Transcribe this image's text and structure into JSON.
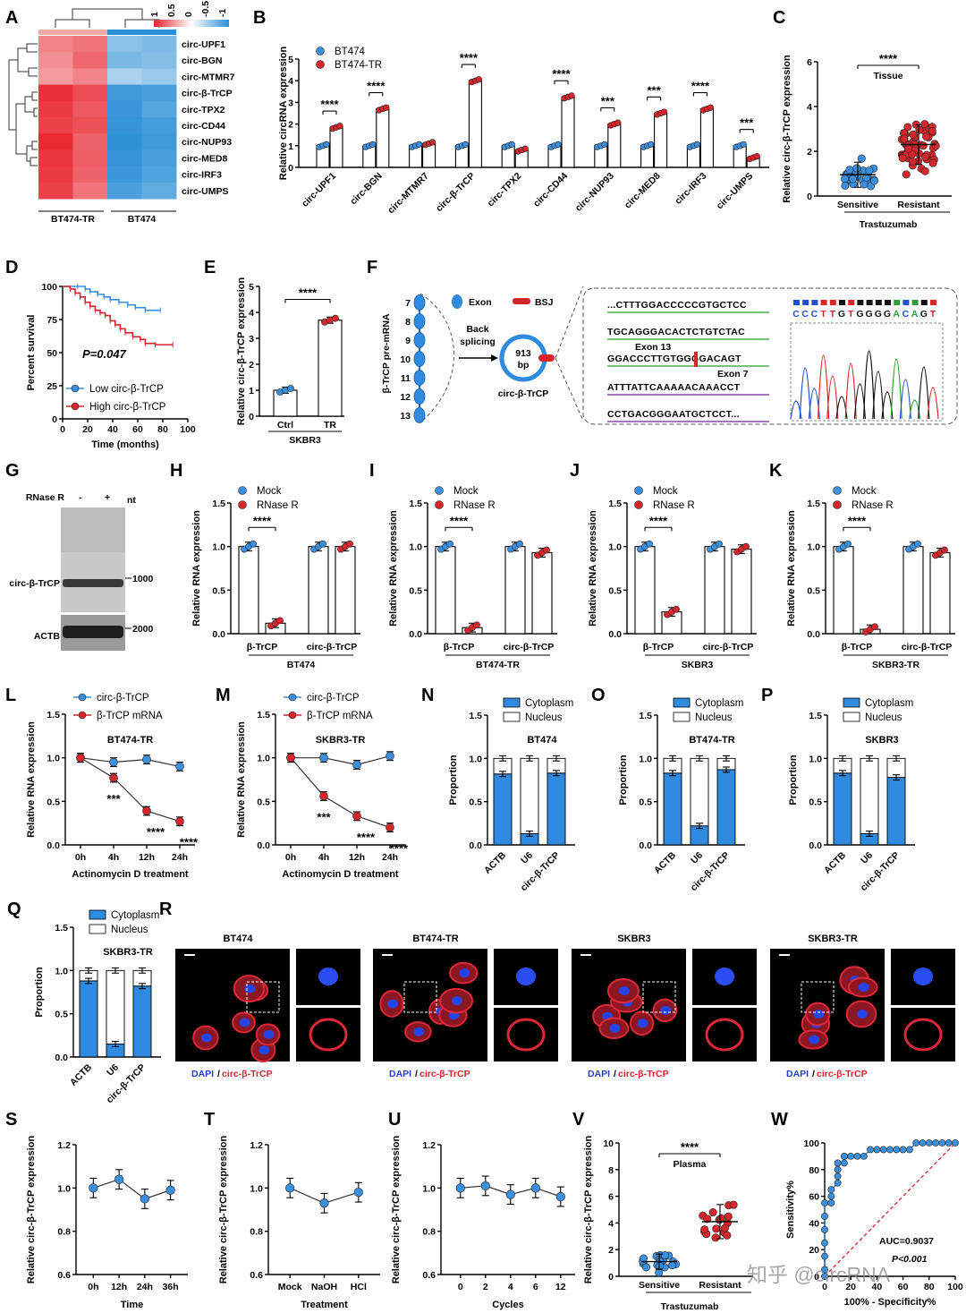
{
  "figure": {
    "panel_labels": [
      "A",
      "B",
      "C",
      "D",
      "E",
      "F",
      "G",
      "H",
      "I",
      "J",
      "K",
      "L",
      "M",
      "N",
      "O",
      "P",
      "Q",
      "R",
      "S",
      "T",
      "U",
      "V",
      "W"
    ],
    "watermark": "知乎 @circRNA"
  },
  "chart_data": [
    {
      "panel": "A",
      "type": "heatmap",
      "rows": [
        "circ-UPF1",
        "circ-BGN",
        "circ-MTMR7",
        "circ-β-TrCP",
        "circ-TPX2",
        "circ-CD44",
        "circ-NUP93",
        "circ-MED8",
        "circ-IRF3",
        "circ-UMPS"
      ],
      "groups": [
        "BT474-TR",
        "BT474"
      ],
      "scale_ticks": [
        "1",
        "0.5",
        "0",
        "-0.5",
        "-1"
      ],
      "colors": {
        "high": "#e8202a",
        "mid": "#ffffff",
        "low": "#2b8fd6"
      },
      "values": [
        [
          0.55,
          0.62,
          -0.55,
          -0.6
        ],
        [
          0.5,
          0.68,
          -0.62,
          -0.58
        ],
        [
          0.45,
          0.55,
          -0.4,
          -0.48
        ],
        [
          0.92,
          0.8,
          -0.9,
          -0.85
        ],
        [
          0.88,
          0.75,
          -0.92,
          -0.8
        ],
        [
          0.85,
          0.78,
          -0.95,
          -0.88
        ],
        [
          0.95,
          0.7,
          -0.98,
          -0.9
        ],
        [
          0.9,
          0.72,
          -0.95,
          -0.85
        ],
        [
          0.88,
          0.7,
          -0.92,
          -0.82
        ],
        [
          0.85,
          0.62,
          -0.85,
          -0.75
        ]
      ]
    },
    {
      "panel": "B",
      "type": "bar",
      "ylabel": "Relative circRNA expression",
      "ylim": [
        0,
        5
      ],
      "yticks": [
        "0",
        "1",
        "2",
        "3",
        "4",
        "5"
      ],
      "categories": [
        "circ-UPF1",
        "circ-BGN",
        "circ-MTMR7",
        "circ-β-TrCP",
        "circ-TPX2",
        "circ-CD44",
        "circ-NUP93",
        "circ-MED8",
        "circ-IRF3",
        "circ-UMPS"
      ],
      "series": [
        {
          "name": "BT474",
          "color": "#3a8fde",
          "values": [
            1,
            1,
            1,
            1,
            1,
            1,
            1,
            1,
            1,
            1
          ]
        },
        {
          "name": "BT474-TR",
          "color": "#d7262b",
          "values": [
            1.85,
            2.7,
            1.1,
            4.0,
            0.8,
            3.25,
            2.0,
            2.5,
            2.7,
            0.45
          ]
        }
      ],
      "significance": [
        "****",
        "****",
        "",
        "****",
        "",
        "****",
        "***",
        "***",
        "****",
        "***"
      ]
    },
    {
      "panel": "C",
      "type": "scatter",
      "ylabel": "Relative circ-β-TrCP expression",
      "ylim": [
        0,
        6
      ],
      "yticks": [
        "0",
        "2",
        "4",
        "6"
      ],
      "categories": [
        "Sensitive",
        "Resistant"
      ],
      "group_label": "Trastuzumab",
      "annotation": "Tissue",
      "significance": "****",
      "means": [
        0.95,
        2.3
      ]
    },
    {
      "panel": "D",
      "type": "line",
      "ylabel": "Percent survival",
      "xlabel": "Time (months)",
      "xlim": [
        0,
        100
      ],
      "ylim": [
        0,
        100
      ],
      "xticks": [
        "0",
        "20",
        "40",
        "60",
        "80",
        "100"
      ],
      "yticks": [
        "0",
        "25",
        "50",
        "75",
        "100"
      ],
      "annotation": "P=0.047",
      "series": [
        {
          "name": "Low circ-β-TrCP",
          "color": "#3a8fde",
          "x": [
            0,
            12,
            18,
            22,
            28,
            33,
            38,
            45,
            52,
            58,
            66,
            78
          ],
          "y": [
            100,
            100,
            98,
            96,
            94,
            92,
            90,
            88,
            86,
            84,
            82,
            82
          ]
        },
        {
          "name": "High circ-β-TrCP",
          "color": "#d7262b",
          "x": [
            0,
            6,
            10,
            14,
            18,
            22,
            26,
            30,
            34,
            38,
            42,
            46,
            50,
            56,
            62,
            66,
            74,
            88
          ],
          "y": [
            100,
            98,
            95,
            92,
            88,
            85,
            82,
            80,
            78,
            74,
            71,
            68,
            65,
            62,
            60,
            57,
            56,
            56
          ]
        }
      ]
    },
    {
      "panel": "E",
      "type": "bar",
      "ylabel": "Relative circ-β-TrCP expression",
      "ylim": [
        0,
        5
      ],
      "yticks": [
        "0",
        "1",
        "2",
        "3",
        "4",
        "5"
      ],
      "categories": [
        "Ctrl",
        "TR"
      ],
      "group_label": "SKBR3",
      "values": [
        1.0,
        3.7
      ],
      "significance": "****"
    },
    {
      "panel": "F",
      "type": "diagram",
      "gene_label": "β-TrCP pre-mRNA",
      "exons": [
        "7",
        "8",
        "9",
        "10",
        "11",
        "12",
        "13"
      ],
      "legend": [
        "Exon",
        "BSJ"
      ],
      "arrow_text": "Back splicing",
      "circle_text": "913 bp",
      "circle_name": "circ-β-TrCP",
      "sequences": [
        "...CTTTGGACCCCCGTGCTCC",
        "TGCAGGGACACTCTGTCTAC",
        "GGACCCTTGTGGGGACAGT",
        "ATTTATTCAAAAACAAACCT",
        "CCTGACGGGAATGCTCCT..."
      ],
      "exon13": "Exon 13",
      "exon7": "Exon 7",
      "trace_bases": [
        "C",
        "C",
        "C",
        "T",
        "T",
        "G",
        "T",
        "G",
        "G",
        "G",
        "G",
        "A",
        "C",
        "A",
        "G",
        "T"
      ]
    },
    {
      "panel": "G",
      "type": "gel",
      "rnase_label": "RNase R",
      "lanes": [
        "-",
        "+"
      ],
      "unit": "nt",
      "bands": [
        "circ-β-TrCP",
        "ACTB"
      ],
      "markers": [
        "1000",
        "2000"
      ]
    },
    {
      "panel": "H",
      "type": "bar",
      "ylabel": "Relative RNA expression",
      "ylim": [
        0,
        1.5
      ],
      "yticks": [
        "0.0",
        "0.5",
        "1.0",
        "1.5"
      ],
      "categories": [
        "β-TrCP",
        "circ-β-TrCP"
      ],
      "group_label": "BT474",
      "series": [
        {
          "name": "Mock",
          "values": [
            1.0,
            1.0
          ]
        },
        {
          "name": "RNase R",
          "values": [
            0.12,
            1.0
          ]
        }
      ],
      "significance": "****"
    },
    {
      "panel": "I",
      "type": "bar",
      "ylabel": "Relative RNA expression",
      "ylim": [
        0,
        1.5
      ],
      "yticks": [
        "0.0",
        "0.5",
        "1.0",
        "1.5"
      ],
      "categories": [
        "β-TrCP",
        "circ-β-TrCP"
      ],
      "group_label": "BT474-TR",
      "series": [
        {
          "name": "Mock",
          "values": [
            1.0,
            1.0
          ]
        },
        {
          "name": "RNase R",
          "values": [
            0.07,
            0.93
          ]
        }
      ],
      "significance": "****"
    },
    {
      "panel": "J",
      "type": "bar",
      "ylabel": "Relative RNA expression",
      "ylim": [
        0,
        1.5
      ],
      "yticks": [
        "0.0",
        "0.5",
        "1.0",
        "1.5"
      ],
      "categories": [
        "β-TrCP",
        "circ-β-TrCP"
      ],
      "group_label": "SKBR3",
      "series": [
        {
          "name": "Mock",
          "values": [
            1.0,
            1.0
          ]
        },
        {
          "name": "RNase R",
          "values": [
            0.25,
            0.97
          ]
        }
      ],
      "significance": "****"
    },
    {
      "panel": "K",
      "type": "bar",
      "ylabel": "Relative RNA expression",
      "ylim": [
        0,
        1.5
      ],
      "yticks": [
        "0.0",
        "0.5",
        "1.0",
        "1.5"
      ],
      "categories": [
        "β-TrCP",
        "circ-β-TrCP"
      ],
      "group_label": "SKBR3-TR",
      "series": [
        {
          "name": "Mock",
          "values": [
            1.0,
            1.0
          ]
        },
        {
          "name": "RNase R",
          "values": [
            0.05,
            0.93
          ]
        }
      ],
      "significance": "****"
    },
    {
      "panel": "L",
      "type": "line",
      "title": "BT474-TR",
      "ylabel": "Relative RNA expression",
      "xlabel": "Actinomycin D treatment",
      "ylim": [
        0,
        1.5
      ],
      "yticks": [
        "0.0",
        "0.5",
        "1.0",
        "1.5"
      ],
      "x": [
        "0h",
        "4h",
        "12h",
        "24h"
      ],
      "series": [
        {
          "name": "circ-β-TrCP",
          "values": [
            1.0,
            0.95,
            0.98,
            0.9
          ]
        },
        {
          "name": "β-TrCP mRNA",
          "values": [
            1.0,
            0.77,
            0.39,
            0.27
          ]
        }
      ],
      "significance": [
        "",
        "***",
        "****",
        "****"
      ]
    },
    {
      "panel": "M",
      "type": "line",
      "title": "SKBR3-TR",
      "ylabel": "Relative RNA expression",
      "xlabel": "Actinomycin D treatment",
      "ylim": [
        0,
        1.5
      ],
      "yticks": [
        "0.0",
        "0.5",
        "1.0",
        "1.5"
      ],
      "x": [
        "0h",
        "4h",
        "12h",
        "24h"
      ],
      "series": [
        {
          "name": "circ-β-TrCP",
          "values": [
            1.0,
            1.0,
            0.92,
            1.02
          ]
        },
        {
          "name": "β-TrCP mRNA",
          "values": [
            1.0,
            0.56,
            0.33,
            0.2
          ]
        }
      ],
      "significance": [
        "",
        "***",
        "****",
        "****"
      ]
    },
    {
      "panel": "N",
      "type": "bar",
      "title": "BT474",
      "ylabel": "Proportion",
      "ylim": [
        0,
        1.5
      ],
      "yticks": [
        "0.0",
        "0.5",
        "1.0",
        "1.5"
      ],
      "categories": [
        "ACTB",
        "U6",
        "circ-β-TrCP"
      ],
      "series": [
        {
          "name": "Cytoplasm",
          "values": [
            0.82,
            0.13,
            0.83
          ]
        },
        {
          "name": "Nucleus",
          "values": [
            0.18,
            0.87,
            0.17
          ]
        }
      ]
    },
    {
      "panel": "O",
      "type": "bar",
      "title": "BT474-TR",
      "ylabel": "Proportion",
      "ylim": [
        0,
        1.5
      ],
      "yticks": [
        "0.0",
        "0.5",
        "1.0",
        "1.5"
      ],
      "categories": [
        "ACTB",
        "U6",
        "circ-β-TrCP"
      ],
      "series": [
        {
          "name": "Cytoplasm",
          "values": [
            0.83,
            0.22,
            0.87
          ]
        },
        {
          "name": "Nucleus",
          "values": [
            0.17,
            0.78,
            0.13
          ]
        }
      ]
    },
    {
      "panel": "P",
      "type": "bar",
      "title": "SKBR3",
      "ylabel": "Proportion",
      "ylim": [
        0,
        1.5
      ],
      "yticks": [
        "0.0",
        "0.5",
        "1.0",
        "1.5"
      ],
      "categories": [
        "ACTB",
        "U6",
        "circ-β-TrCP"
      ],
      "series": [
        {
          "name": "Cytoplasm",
          "values": [
            0.83,
            0.13,
            0.78
          ]
        },
        {
          "name": "Nucleus",
          "values": [
            0.17,
            0.87,
            0.22
          ]
        }
      ]
    },
    {
      "panel": "Q",
      "type": "bar",
      "title": "SKBR3-TR",
      "ylabel": "Proportion",
      "ylim": [
        0,
        1.5
      ],
      "yticks": [
        "0.0",
        "0.5",
        "1.0",
        "1.5"
      ],
      "categories": [
        "ACTB",
        "U6",
        "circ-β-TrCP"
      ],
      "series": [
        {
          "name": "Cytoplasm",
          "values": [
            0.88,
            0.15,
            0.82
          ]
        },
        {
          "name": "Nucleus",
          "values": [
            0.12,
            0.85,
            0.18
          ]
        }
      ]
    },
    {
      "panel": "R",
      "type": "image",
      "cells": [
        "BT474",
        "BT474-TR",
        "SKBR3",
        "SKBR3-TR"
      ],
      "caption_blue": "DAPI",
      "caption_red": "circ-β-TrCP"
    },
    {
      "panel": "S",
      "type": "line",
      "ylabel": "Relative circ-β-TrCP expression",
      "xlabel": "Time",
      "ylim": [
        0.6,
        1.2
      ],
      "yticks": [
        "0.6",
        "0.8",
        "1.0",
        "1.2"
      ],
      "x": [
        "0h",
        "12h",
        "24h",
        "36h"
      ],
      "values": [
        1.0,
        1.04,
        0.95,
        0.99
      ]
    },
    {
      "panel": "T",
      "type": "line",
      "ylabel": "Relative circ-β-TrCP expression",
      "xlabel": "Treatment",
      "ylim": [
        0.6,
        1.2
      ],
      "yticks": [
        "0.6",
        "0.8",
        "1.0",
        "1.2"
      ],
      "x": [
        "Mock",
        "NaOH",
        "HCl"
      ],
      "values": [
        1.0,
        0.93,
        0.98
      ]
    },
    {
      "panel": "U",
      "type": "line",
      "ylabel": "Relative circ-β-TrCP expression",
      "xlabel": "Cycles",
      "ylim": [
        0.6,
        1.2
      ],
      "yticks": [
        "0.6",
        "0.8",
        "1.0",
        "1.2"
      ],
      "x": [
        "0",
        "2",
        "4",
        "6",
        "12"
      ],
      "values": [
        1.0,
        1.01,
        0.97,
        1.0,
        0.96
      ]
    },
    {
      "panel": "V",
      "type": "scatter",
      "ylabel": "Relative circ-β-TrCP expression",
      "ylim": [
        0,
        10
      ],
      "yticks": [
        "0",
        "2",
        "4",
        "6",
        "8",
        "10"
      ],
      "categories": [
        "Sensitive",
        "Resistant"
      ],
      "group_label": "Trastuzumab",
      "annotation": "Plasma",
      "significance": "****",
      "means": [
        1.1,
        4.1
      ]
    },
    {
      "panel": "W",
      "type": "line",
      "ylabel": "Sensitivity%",
      "xlabel": "100% - Specificity%",
      "xlim": [
        0,
        100
      ],
      "ylim": [
        0,
        100
      ],
      "xticks": [
        "0",
        "20",
        "40",
        "60",
        "80",
        "100"
      ],
      "yticks": [
        "0",
        "20",
        "40",
        "60",
        "80",
        "100"
      ],
      "x": [
        0,
        0,
        0,
        0,
        0,
        0,
        0,
        5,
        5,
        5,
        10,
        10,
        10,
        10,
        15,
        15,
        15,
        20,
        25,
        30,
        35,
        40,
        45,
        50,
        55,
        60,
        65,
        70,
        75,
        80,
        85,
        90,
        95,
        100
      ],
      "y": [
        0,
        5,
        15,
        25,
        35,
        45,
        55,
        55,
        60,
        65,
        70,
        75,
        80,
        85,
        85,
        90,
        90,
        90,
        90,
        90,
        95,
        95,
        95,
        95,
        95,
        95,
        95,
        100,
        100,
        100,
        100,
        100,
        100,
        100
      ],
      "auc": "AUC=0.9037",
      "p": "P<0.001"
    }
  ]
}
